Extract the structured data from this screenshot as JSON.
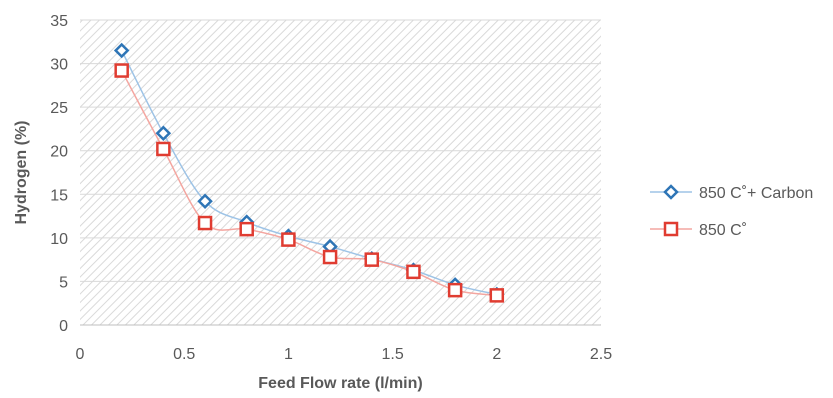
{
  "chart_data": {
    "type": "line",
    "xlabel": "Feed Flow rate (l/min)",
    "ylabel": "Hydrogen (%)",
    "xlim": [
      0,
      2.5
    ],
    "ylim": [
      0,
      35
    ],
    "x_ticks": [
      0,
      0.5,
      1,
      1.5,
      2,
      2.5
    ],
    "x_tick_labels": [
      "0",
      "0.5",
      "1",
      "1.5",
      "2",
      "2.5"
    ],
    "y_ticks": [
      0,
      5,
      10,
      15,
      20,
      25,
      30,
      35
    ],
    "y_tick_labels": [
      "0",
      "5",
      "10",
      "15",
      "20",
      "25",
      "30",
      "35"
    ],
    "grid": "horizontal",
    "plot_background": "diagonal hatch",
    "legend_position": "right",
    "x": [
      0.2,
      0.4,
      0.6,
      0.8,
      1.0,
      1.2,
      1.4,
      1.6,
      1.8,
      2.0
    ],
    "series": [
      {
        "name": "850 C˚+ Carbon",
        "marker": "diamond",
        "color": "#2E75B6",
        "line_color": "#9DC3E6",
        "values": [
          31.5,
          22.0,
          14.2,
          11.8,
          10.2,
          9.0,
          7.6,
          6.3,
          4.6,
          3.5
        ]
      },
      {
        "name": "850 C˚",
        "marker": "square",
        "color": "#E03C31",
        "line_color": "#F4A6A0",
        "values": [
          29.2,
          20.2,
          11.7,
          11.0,
          9.8,
          7.8,
          7.5,
          6.1,
          4.0,
          3.4
        ]
      }
    ]
  }
}
